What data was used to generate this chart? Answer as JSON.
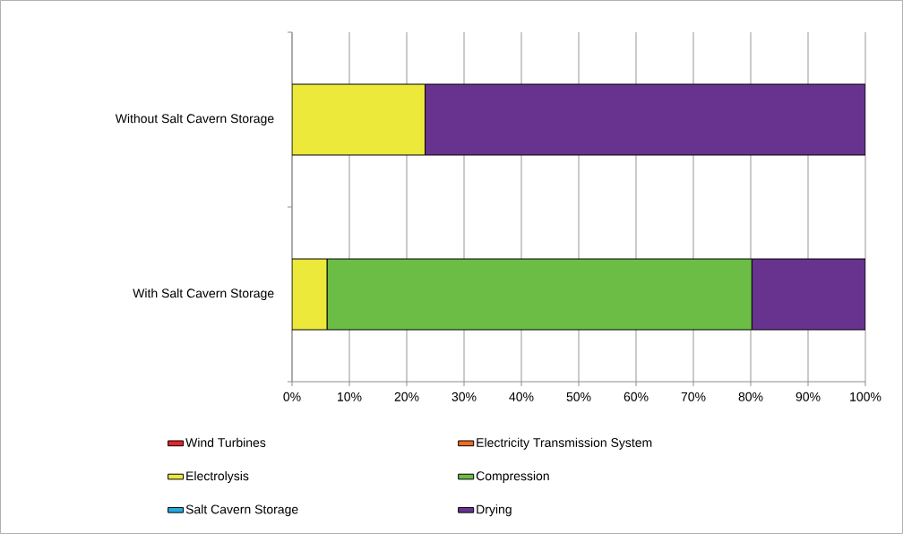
{
  "chart_data": {
    "type": "bar",
    "orientation": "horizontal",
    "stacked": true,
    "categories": [
      "Without Salt Cavern Storage",
      "With Salt Cavern Storage"
    ],
    "series": [
      {
        "name": "Wind Turbines",
        "color": "#e8232a",
        "values": [
          0,
          0
        ]
      },
      {
        "name": "Electricity Transmission System",
        "color": "#f26b21",
        "values": [
          0,
          0
        ]
      },
      {
        "name": "Electrolysis",
        "color": "#ece93b",
        "values": [
          23.2,
          6.1
        ]
      },
      {
        "name": "Compression",
        "color": "#6cbd45",
        "values": [
          0,
          74.1
        ]
      },
      {
        "name": "Salt Cavern Storage",
        "color": "#27a8df",
        "values": [
          0,
          0
        ]
      },
      {
        "name": "Drying",
        "color": "#67338f",
        "values": [
          76.8,
          19.8
        ]
      }
    ],
    "xlim": [
      0,
      100
    ],
    "xticks": [
      {
        "value": 0,
        "label": "0%"
      },
      {
        "value": 10,
        "label": "10%"
      },
      {
        "value": 20,
        "label": "20%"
      },
      {
        "value": 30,
        "label": "30%"
      },
      {
        "value": 40,
        "label": "40%"
      },
      {
        "value": 50,
        "label": "50%"
      },
      {
        "value": 60,
        "label": "60%"
      },
      {
        "value": 70,
        "label": "70%"
      },
      {
        "value": 80,
        "label": "80%"
      },
      {
        "value": 90,
        "label": "90%"
      },
      {
        "value": 100,
        "label": "100%"
      }
    ],
    "grid": "x",
    "legend": "bottom"
  }
}
